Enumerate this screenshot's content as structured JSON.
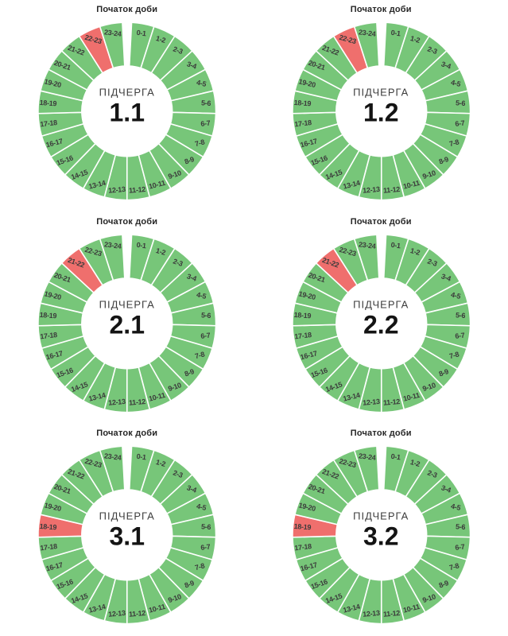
{
  "colors": {
    "segment_green": "#77C679",
    "segment_red": "#EF6F6D",
    "segment_border": "#FFFFFF",
    "hour_label_text": "#3B3B3B",
    "center_label_text": "#3D3D3D",
    "center_value_text": "#141414",
    "title_text": "#262626",
    "background": "#FFFFFF"
  },
  "chart_data": [
    {
      "type": "pie",
      "variant": "donut",
      "title": "Початок доби",
      "center_label": "ПІДЧЕРГА",
      "center_value": "1.1",
      "categories": [
        "0-1",
        "1-2",
        "2-3",
        "3-4",
        "4-5",
        "5-6",
        "6-7",
        "7-8",
        "8-9",
        "9-10",
        "10-11",
        "11-12",
        "12-13",
        "13-14",
        "14-15",
        "15-16",
        "16-17",
        "17-18",
        "18-19",
        "19-20",
        "20-21",
        "21-22",
        "22-23",
        "23-24"
      ],
      "values": [
        1,
        1,
        1,
        1,
        1,
        1,
        1,
        1,
        1,
        1,
        1,
        1,
        1,
        1,
        1,
        1,
        1,
        1,
        1,
        1,
        1,
        1,
        1,
        1
      ],
      "highlighted": [
        "22-23"
      ],
      "direction": "clockwise",
      "start_gap_degrees": 6,
      "donut_hole_ratio": 0.51,
      "legend": "none"
    },
    {
      "type": "pie",
      "variant": "donut",
      "title": "Початок доби",
      "center_label": "ПІДЧЕРГА",
      "center_value": "1.2",
      "categories": [
        "0-1",
        "1-2",
        "2-3",
        "3-4",
        "4-5",
        "5-6",
        "6-7",
        "7-8",
        "8-9",
        "9-10",
        "10-11",
        "11-12",
        "12-13",
        "13-14",
        "14-15",
        "15-16",
        "16-17",
        "17-18",
        "18-19",
        "19-20",
        "20-21",
        "21-22",
        "22-23",
        "23-24"
      ],
      "values": [
        1,
        1,
        1,
        1,
        1,
        1,
        1,
        1,
        1,
        1,
        1,
        1,
        1,
        1,
        1,
        1,
        1,
        1,
        1,
        1,
        1,
        1,
        1,
        1
      ],
      "highlighted": [
        "22-23"
      ],
      "direction": "clockwise",
      "start_gap_degrees": 6,
      "donut_hole_ratio": 0.51,
      "legend": "none"
    },
    {
      "type": "pie",
      "variant": "donut",
      "title": "Початок доби",
      "center_label": "ПІДЧЕРГА",
      "center_value": "2.1",
      "categories": [
        "0-1",
        "1-2",
        "2-3",
        "3-4",
        "4-5",
        "5-6",
        "6-7",
        "7-8",
        "8-9",
        "9-10",
        "10-11",
        "11-12",
        "12-13",
        "13-14",
        "14-15",
        "15-16",
        "16-17",
        "17-18",
        "18-19",
        "19-20",
        "20-21",
        "21-22",
        "22-23",
        "23-24"
      ],
      "values": [
        1,
        1,
        1,
        1,
        1,
        1,
        1,
        1,
        1,
        1,
        1,
        1,
        1,
        1,
        1,
        1,
        1,
        1,
        1,
        1,
        1,
        1,
        1,
        1
      ],
      "highlighted": [
        "21-22"
      ],
      "direction": "clockwise",
      "start_gap_degrees": 6,
      "donut_hole_ratio": 0.51,
      "legend": "none"
    },
    {
      "type": "pie",
      "variant": "donut",
      "title": "Початок доби",
      "center_label": "ПІДЧЕРГА",
      "center_value": "2.2",
      "categories": [
        "0-1",
        "1-2",
        "2-3",
        "3-4",
        "4-5",
        "5-6",
        "6-7",
        "7-8",
        "8-9",
        "9-10",
        "10-11",
        "11-12",
        "12-13",
        "13-14",
        "14-15",
        "15-16",
        "16-17",
        "17-18",
        "18-19",
        "19-20",
        "20-21",
        "21-22",
        "22-23",
        "23-24"
      ],
      "values": [
        1,
        1,
        1,
        1,
        1,
        1,
        1,
        1,
        1,
        1,
        1,
        1,
        1,
        1,
        1,
        1,
        1,
        1,
        1,
        1,
        1,
        1,
        1,
        1
      ],
      "highlighted": [
        "21-22"
      ],
      "direction": "clockwise",
      "start_gap_degrees": 6,
      "donut_hole_ratio": 0.51,
      "legend": "none"
    },
    {
      "type": "pie",
      "variant": "donut",
      "title": "Початок доби",
      "center_label": "ПІДЧЕРГА",
      "center_value": "3.1",
      "categories": [
        "0-1",
        "1-2",
        "2-3",
        "3-4",
        "4-5",
        "5-6",
        "6-7",
        "7-8",
        "8-9",
        "9-10",
        "10-11",
        "11-12",
        "12-13",
        "13-14",
        "14-15",
        "15-16",
        "16-17",
        "17-18",
        "18-19",
        "19-20",
        "20-21",
        "21-22",
        "22-23",
        "23-24"
      ],
      "values": [
        1,
        1,
        1,
        1,
        1,
        1,
        1,
        1,
        1,
        1,
        1,
        1,
        1,
        1,
        1,
        1,
        1,
        1,
        1,
        1,
        1,
        1,
        1,
        1
      ],
      "highlighted": [
        "18-19"
      ],
      "direction": "clockwise",
      "start_gap_degrees": 6,
      "donut_hole_ratio": 0.51,
      "legend": "none"
    },
    {
      "type": "pie",
      "variant": "donut",
      "title": "Початок доби",
      "center_label": "ПІДЧЕРГА",
      "center_value": "3.2",
      "categories": [
        "0-1",
        "1-2",
        "2-3",
        "3-4",
        "4-5",
        "5-6",
        "6-7",
        "7-8",
        "8-9",
        "9-10",
        "10-11",
        "11-12",
        "12-13",
        "13-14",
        "14-15",
        "15-16",
        "16-17",
        "17-18",
        "18-19",
        "19-20",
        "20-21",
        "21-22",
        "22-23",
        "23-24"
      ],
      "values": [
        1,
        1,
        1,
        1,
        1,
        1,
        1,
        1,
        1,
        1,
        1,
        1,
        1,
        1,
        1,
        1,
        1,
        1,
        1,
        1,
        1,
        1,
        1,
        1
      ],
      "highlighted": [
        "18-19"
      ],
      "direction": "clockwise",
      "start_gap_degrees": 6,
      "donut_hole_ratio": 0.51,
      "legend": "none"
    }
  ]
}
